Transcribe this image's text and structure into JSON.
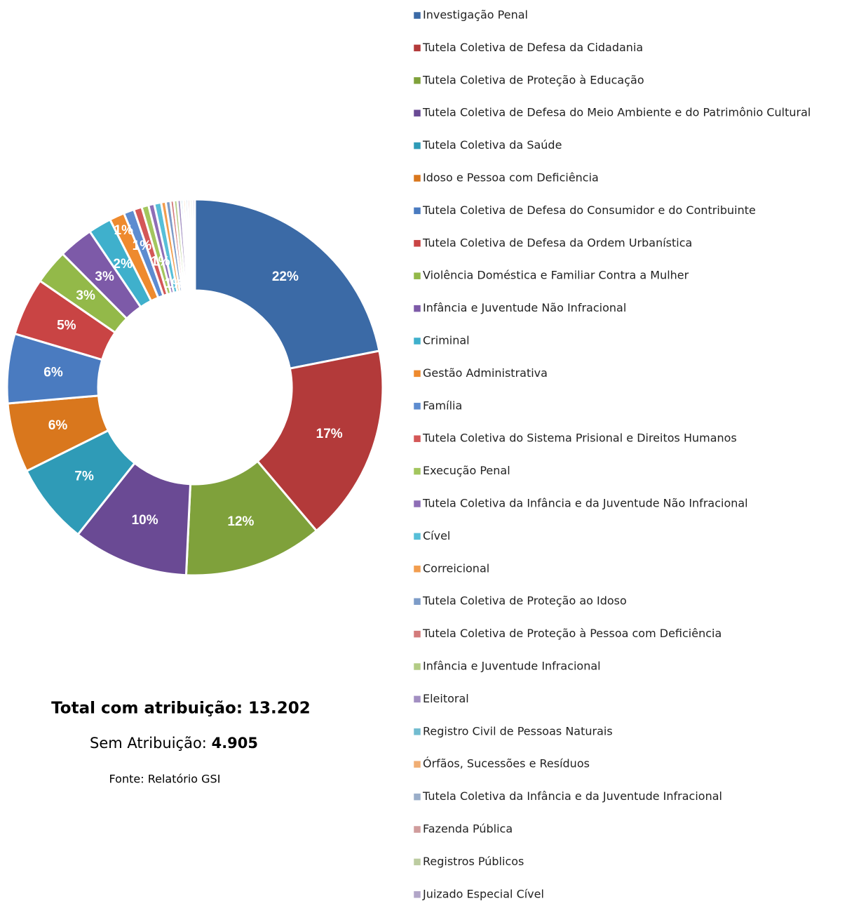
{
  "chart_data": {
    "type": "pie",
    "categories": [
      "Investigação Penal",
      "Tutela Coletiva de Defesa da Cidadania",
      "Tutela Coletiva de Proteção à Educação",
      "Tutela Coletiva de Defesa do Meio Ambiente e do Patrimônio Cultural",
      "Tutela Coletiva da Saúde",
      "Idoso e Pessoa com Deficiência",
      "Tutela Coletiva de Defesa do Consumidor e do Contribuinte",
      "Tutela Coletiva de Defesa da Ordem Urbanística",
      "Violência Doméstica e Familiar Contra a Mulher",
      "Infância e Juventude Não Infracional",
      "Criminal",
      "Gestão Administrativa",
      "Família",
      "Tutela Coletiva do Sistema Prisional e Direitos Humanos",
      "Execução Penal",
      "Tutela Coletiva da Infância e da Juventude Não Infracional",
      "Cível",
      "Correicional",
      "Tutela Coletiva de Proteção ao Idoso",
      "Tutela Coletiva de Proteção à Pessoa com Deficiência",
      "Infância e Juventude Infracional",
      "Eleitoral",
      "Registro Civil de Pessoas Naturais",
      "Órfãos, Sucessões e Resíduos",
      "Tutela Coletiva da Infância e da Juventude Infracional",
      "Fazenda Pública",
      "Registros Públicos",
      "Juizado Especial Cível"
    ],
    "values": [
      22,
      17,
      12,
      10,
      7,
      6,
      6,
      5,
      3,
      3,
      2,
      1.3,
      0.9,
      0.7,
      0.6,
      0.5,
      0.6,
      0.4,
      0.4,
      0.3,
      0.3,
      0.3,
      0.2,
      0.2,
      0.2,
      0.2,
      0.2,
      0.2
    ],
    "value_labels": [
      "22%",
      "17%",
      "12%",
      "10%",
      "7%",
      "6%",
      "6%",
      "5%",
      "3%",
      "3%",
      "2%",
      "1%",
      "1%",
      null,
      "1%",
      null,
      "1%",
      null,
      null,
      null,
      null,
      null,
      null,
      null,
      null,
      null,
      null,
      null
    ],
    "colors": [
      "#3b6aa6",
      "#b33a3a",
      "#7fa13b",
      "#6a4a94",
      "#2f9bb7",
      "#d9771d",
      "#4a7bc0",
      "#c94444",
      "#93b949",
      "#7d5aa8",
      "#3fb0cc",
      "#ee8a2e",
      "#5d8cd0",
      "#d45757",
      "#a3c65e",
      "#8e6eb6",
      "#57bfd8",
      "#f29d4e",
      "#7d9cc8",
      "#d37b7b",
      "#b3cc85",
      "#a28fc2",
      "#72bcd0",
      "#f0ae74",
      "#9aaec9",
      "#d09c9c",
      "#bccca0",
      "#b2a6c8"
    ],
    "total": "Total com atribuição: 13.202",
    "unassigned_label": "Sem Atribuição:",
    "unassigned_value": "4.905",
    "source": "Fonte: Relatório GSI"
  }
}
